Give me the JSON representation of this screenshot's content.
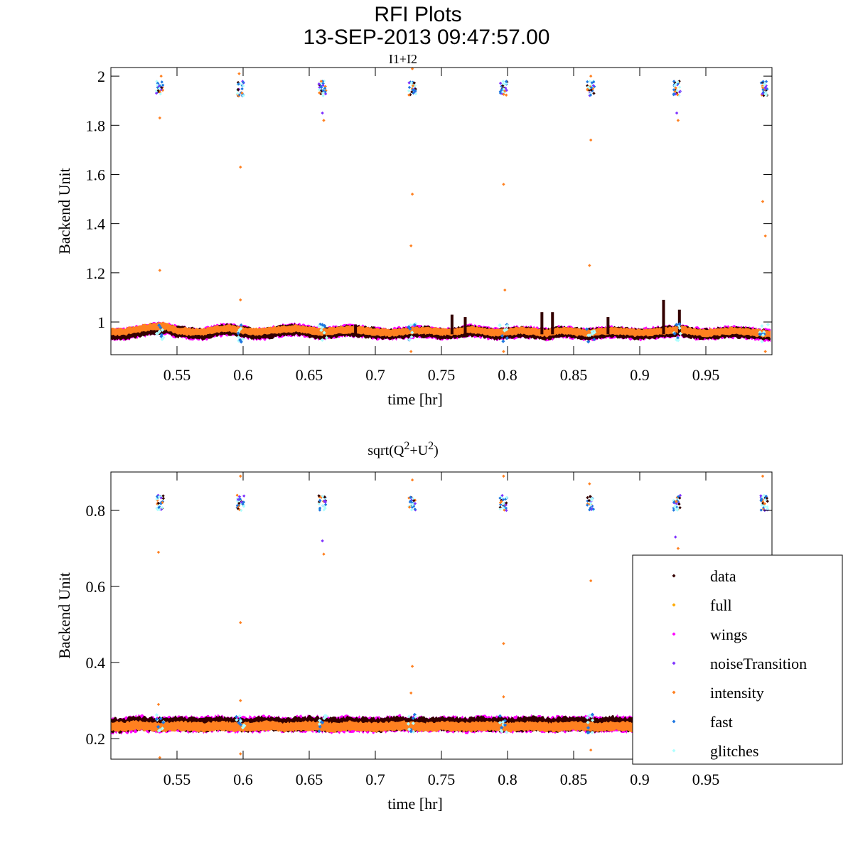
{
  "figure": {
    "title": "RFI Plots",
    "datetime": "13-SEP-2013 09:47:57.00"
  },
  "legend": {
    "placement": "lower-right",
    "entries": [
      {
        "label": "data",
        "color": "#330000"
      },
      {
        "label": "full",
        "color": "#ffaa00"
      },
      {
        "label": "wings",
        "color": "#ff00ff"
      },
      {
        "label": "noiseTransition",
        "color": "#7f33ff"
      },
      {
        "label": "intensity",
        "color": "#ff8020"
      },
      {
        "label": "fast",
        "color": "#1f77e0"
      },
      {
        "label": "glitches",
        "color": "#b0ffff"
      }
    ]
  },
  "chart_data": [
    {
      "type": "scatter",
      "title": "I1+I2",
      "title_parts": [
        "I1+I2"
      ],
      "xlabel": "time [hr]",
      "ylabel": "Backend Unit",
      "xlim": [
        0.5,
        1.0
      ],
      "ylim": [
        0.867,
        2.035
      ],
      "xticks": [
        "0.55",
        "0.6",
        "0.65",
        "0.7",
        "0.75",
        "0.8",
        "0.85",
        "0.9",
        "0.95"
      ],
      "yticks": [
        "1",
        "1.2",
        "1.4",
        "1.6",
        "1.8",
        "2"
      ],
      "grid": false,
      "baseline": {
        "x_start": 0.5,
        "x_step": 0.01,
        "data": [
          0.95,
          0.95,
          0.96,
          0.97,
          0.975,
          0.96,
          0.955,
          0.95,
          0.965,
          0.97,
          0.96,
          0.95,
          0.955,
          0.965,
          0.97,
          0.96,
          0.95,
          0.96,
          0.965,
          0.96,
          0.955,
          0.95,
          0.955,
          0.96,
          0.96,
          0.95,
          0.955,
          0.965,
          0.96,
          0.95,
          0.955,
          0.96,
          0.955,
          0.95,
          0.96,
          0.955,
          0.95,
          0.955,
          0.96,
          0.955,
          0.95,
          0.955,
          0.96,
          0.965,
          0.955,
          0.95,
          0.955,
          0.96,
          0.955,
          0.95,
          0.945
        ],
        "intensity": [
          0.96,
          0.96,
          0.97,
          0.98,
          0.985,
          0.965,
          0.96,
          0.96,
          0.97,
          0.975,
          0.965,
          0.96,
          0.965,
          0.97,
          0.975,
          0.965,
          0.96,
          0.965,
          0.97,
          0.965,
          0.96,
          0.955,
          0.96,
          0.965,
          0.965,
          0.96,
          0.96,
          0.97,
          0.965,
          0.955,
          0.96,
          0.965,
          0.96,
          0.955,
          0.965,
          0.96,
          0.955,
          0.96,
          0.965,
          0.96,
          0.955,
          0.96,
          0.965,
          0.97,
          0.96,
          0.955,
          0.96,
          0.965,
          0.96,
          0.955,
          0.95
        ],
        "band": 0.03
      },
      "cal_clusters": {
        "x": [
          0.537,
          0.598,
          0.66,
          0.728,
          0.797,
          0.863,
          0.928,
          0.994
        ],
        "y": 1.95,
        "spread": 0.03
      },
      "cal_dips": {
        "x": [
          0.537,
          0.598,
          0.66,
          0.728,
          0.797,
          0.863,
          0.928,
          0.994
        ],
        "y": 0.955
      },
      "data_spikes": [
        [
          0.758,
          1.03
        ],
        [
          0.768,
          1.02
        ],
        [
          0.826,
          1.04
        ],
        [
          0.834,
          1.04
        ],
        [
          0.876,
          1.02
        ],
        [
          0.918,
          1.09
        ],
        [
          0.93,
          1.05
        ],
        [
          0.685,
          0.99
        ]
      ],
      "intensity_outliers": [
        [
          0.537,
          1.83
        ],
        [
          0.537,
          1.21
        ],
        [
          0.598,
          1.63
        ],
        [
          0.598,
          1.09
        ],
        [
          0.661,
          1.82
        ],
        [
          0.727,
          1.31
        ],
        [
          0.728,
          1.52
        ],
        [
          0.797,
          1.56
        ],
        [
          0.798,
          1.13
        ],
        [
          0.863,
          1.74
        ],
        [
          0.862,
          1.23
        ],
        [
          0.929,
          1.82
        ],
        [
          0.993,
          1.49
        ],
        [
          0.995,
          1.35
        ],
        [
          0.728,
          2.03
        ],
        [
          0.597,
          2.01
        ],
        [
          0.863,
          2.0
        ],
        [
          0.538,
          2.0
        ],
        [
          0.727,
          0.88
        ],
        [
          0.797,
          0.88
        ],
        [
          0.995,
          0.88
        ]
      ],
      "noise_outliers": [
        [
          0.66,
          1.85
        ],
        [
          0.928,
          1.85
        ]
      ]
    },
    {
      "type": "scatter",
      "title": "sqrt(Q^2+U^2)",
      "title_parts": [
        "sqrt(Q",
        "2",
        "+U",
        "2",
        ")"
      ],
      "xlabel": "time [hr]",
      "ylabel": "Backend Unit",
      "xlim": [
        0.5,
        1.0
      ],
      "ylim": [
        0.146,
        0.901
      ],
      "xticks": [
        "0.55",
        "0.6",
        "0.65",
        "0.7",
        "0.75",
        "0.8",
        "0.85",
        "0.9",
        "0.95"
      ],
      "yticks": [
        "0.2",
        "0.4",
        "0.6",
        "0.8"
      ],
      "grid": false,
      "baseline": {
        "x_start": 0.5,
        "x_step": 0.01,
        "data": [
          0.235,
          0.235,
          0.24,
          0.238,
          0.236,
          0.24,
          0.238,
          0.236,
          0.24,
          0.238,
          0.236,
          0.238,
          0.24,
          0.236,
          0.238,
          0.24,
          0.238,
          0.236,
          0.24,
          0.238,
          0.236,
          0.238,
          0.24,
          0.238,
          0.236,
          0.24,
          0.238,
          0.236,
          0.24,
          0.238,
          0.236,
          0.238,
          0.24,
          0.236,
          0.238,
          0.24,
          0.238,
          0.236,
          0.24,
          0.238,
          0.236,
          0.238,
          0.24,
          0.236,
          0.238,
          0.24,
          0.238,
          0.236,
          0.24,
          0.238,
          0.236
        ],
        "intensity": [
          0.232,
          0.232,
          0.235,
          0.232,
          0.23,
          0.234,
          0.232,
          0.23,
          0.234,
          0.232,
          0.23,
          0.232,
          0.234,
          0.23,
          0.232,
          0.234,
          0.232,
          0.23,
          0.234,
          0.232,
          0.23,
          0.232,
          0.234,
          0.232,
          0.23,
          0.234,
          0.232,
          0.23,
          0.234,
          0.232,
          0.23,
          0.232,
          0.234,
          0.23,
          0.232,
          0.234,
          0.232,
          0.23,
          0.234,
          0.232,
          0.23,
          0.232,
          0.234,
          0.23,
          0.232,
          0.234,
          0.232,
          0.23,
          0.234,
          0.232,
          0.23
        ],
        "band": 0.025
      },
      "cal_clusters": {
        "x": [
          0.537,
          0.598,
          0.66,
          0.728,
          0.797,
          0.863,
          0.928,
          0.994
        ],
        "y": 0.82,
        "spread": 0.02
      },
      "cal_dips": {
        "x": [
          0.537,
          0.598,
          0.66,
          0.728,
          0.797,
          0.863,
          0.928,
          0.994
        ],
        "y": 0.24
      },
      "data_spikes": [],
      "intensity_outliers": [
        [
          0.536,
          0.69
        ],
        [
          0.598,
          0.505
        ],
        [
          0.598,
          0.3
        ],
        [
          0.661,
          0.685
        ],
        [
          0.728,
          0.39
        ],
        [
          0.727,
          0.32
        ],
        [
          0.797,
          0.45
        ],
        [
          0.797,
          0.31
        ],
        [
          0.863,
          0.615
        ],
        [
          0.929,
          0.7
        ],
        [
          0.536,
          0.29
        ],
        [
          0.728,
          0.88
        ],
        [
          0.862,
          0.87
        ],
        [
          0.993,
          0.89
        ],
        [
          0.537,
          0.15
        ],
        [
          0.598,
          0.16
        ],
        [
          0.863,
          0.17
        ],
        [
          0.598,
          0.89
        ],
        [
          0.797,
          0.89
        ]
      ],
      "noise_outliers": [
        [
          0.66,
          0.72
        ],
        [
          0.927,
          0.73
        ]
      ]
    }
  ]
}
